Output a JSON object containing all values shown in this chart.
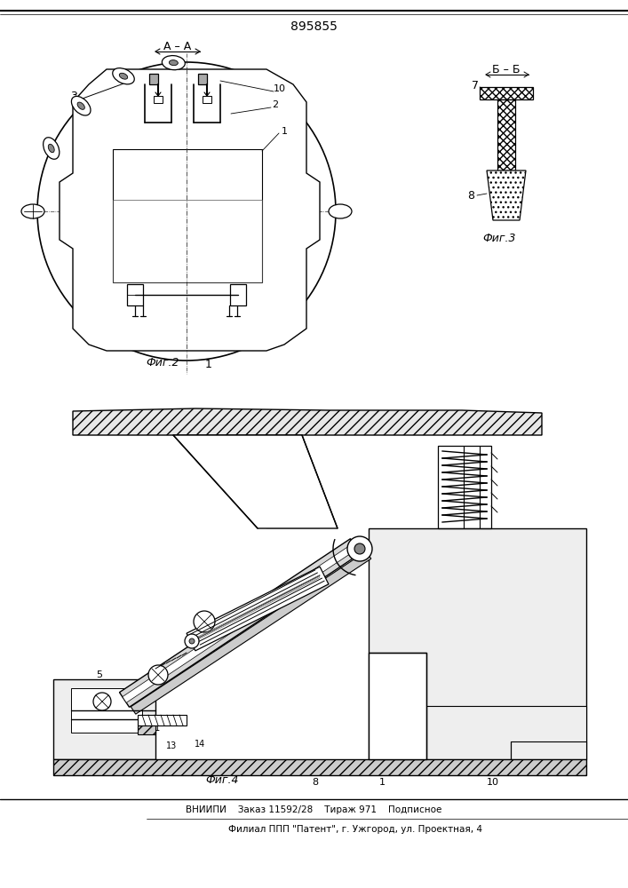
{
  "title": "895855",
  "fig2_label": "Фиг.2",
  "fig3_label": "Фиг.3",
  "fig4_label": "Фиг.4",
  "footer_line1": "ВНИИПИ    Заказ 11592/28    Тираж 971    Подписное",
  "footer_line2": "Филиал ППП \"Патент\", г. Ужгород, ул. Проектная, 4",
  "bg_color": "#ffffff",
  "lc": "#000000"
}
